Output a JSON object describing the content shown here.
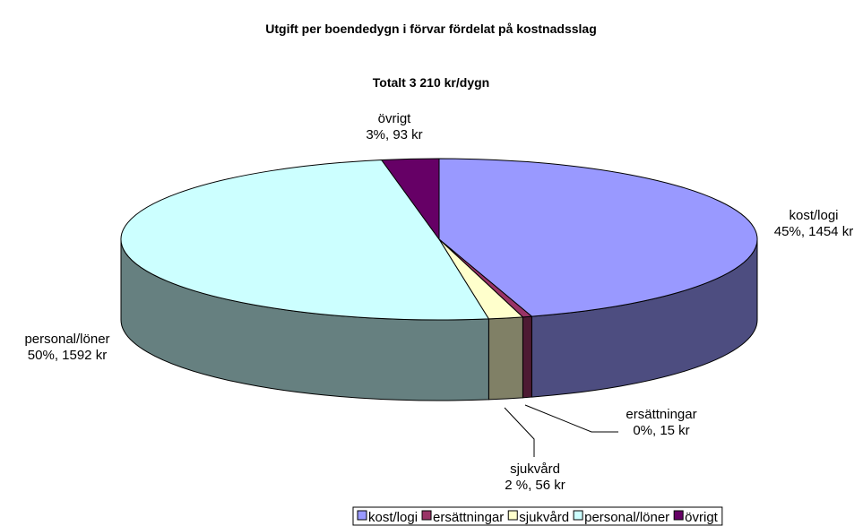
{
  "chart_data": {
    "type": "pie",
    "title": "Utgift per boendedygn i förvar fördelat på kostnadsslag",
    "subtitle": "Totalt 3 210 kr/dygn",
    "categories": [
      "kost/logi",
      "ersättningar",
      "sjukvård",
      "personal/löner",
      "övrigt"
    ],
    "values": [
      1454,
      15,
      56,
      1592,
      93
    ],
    "value_labels": [
      "45%, 1454 kr",
      "0%, 15 kr",
      "2 %, 56 kr",
      "50%, 1592 kr",
      "3%, 93 kr"
    ],
    "colors": [
      "#9999ff",
      "#993366",
      "#ffffcc",
      "#ccffff",
      "#660066"
    ],
    "legend": "bottom"
  }
}
